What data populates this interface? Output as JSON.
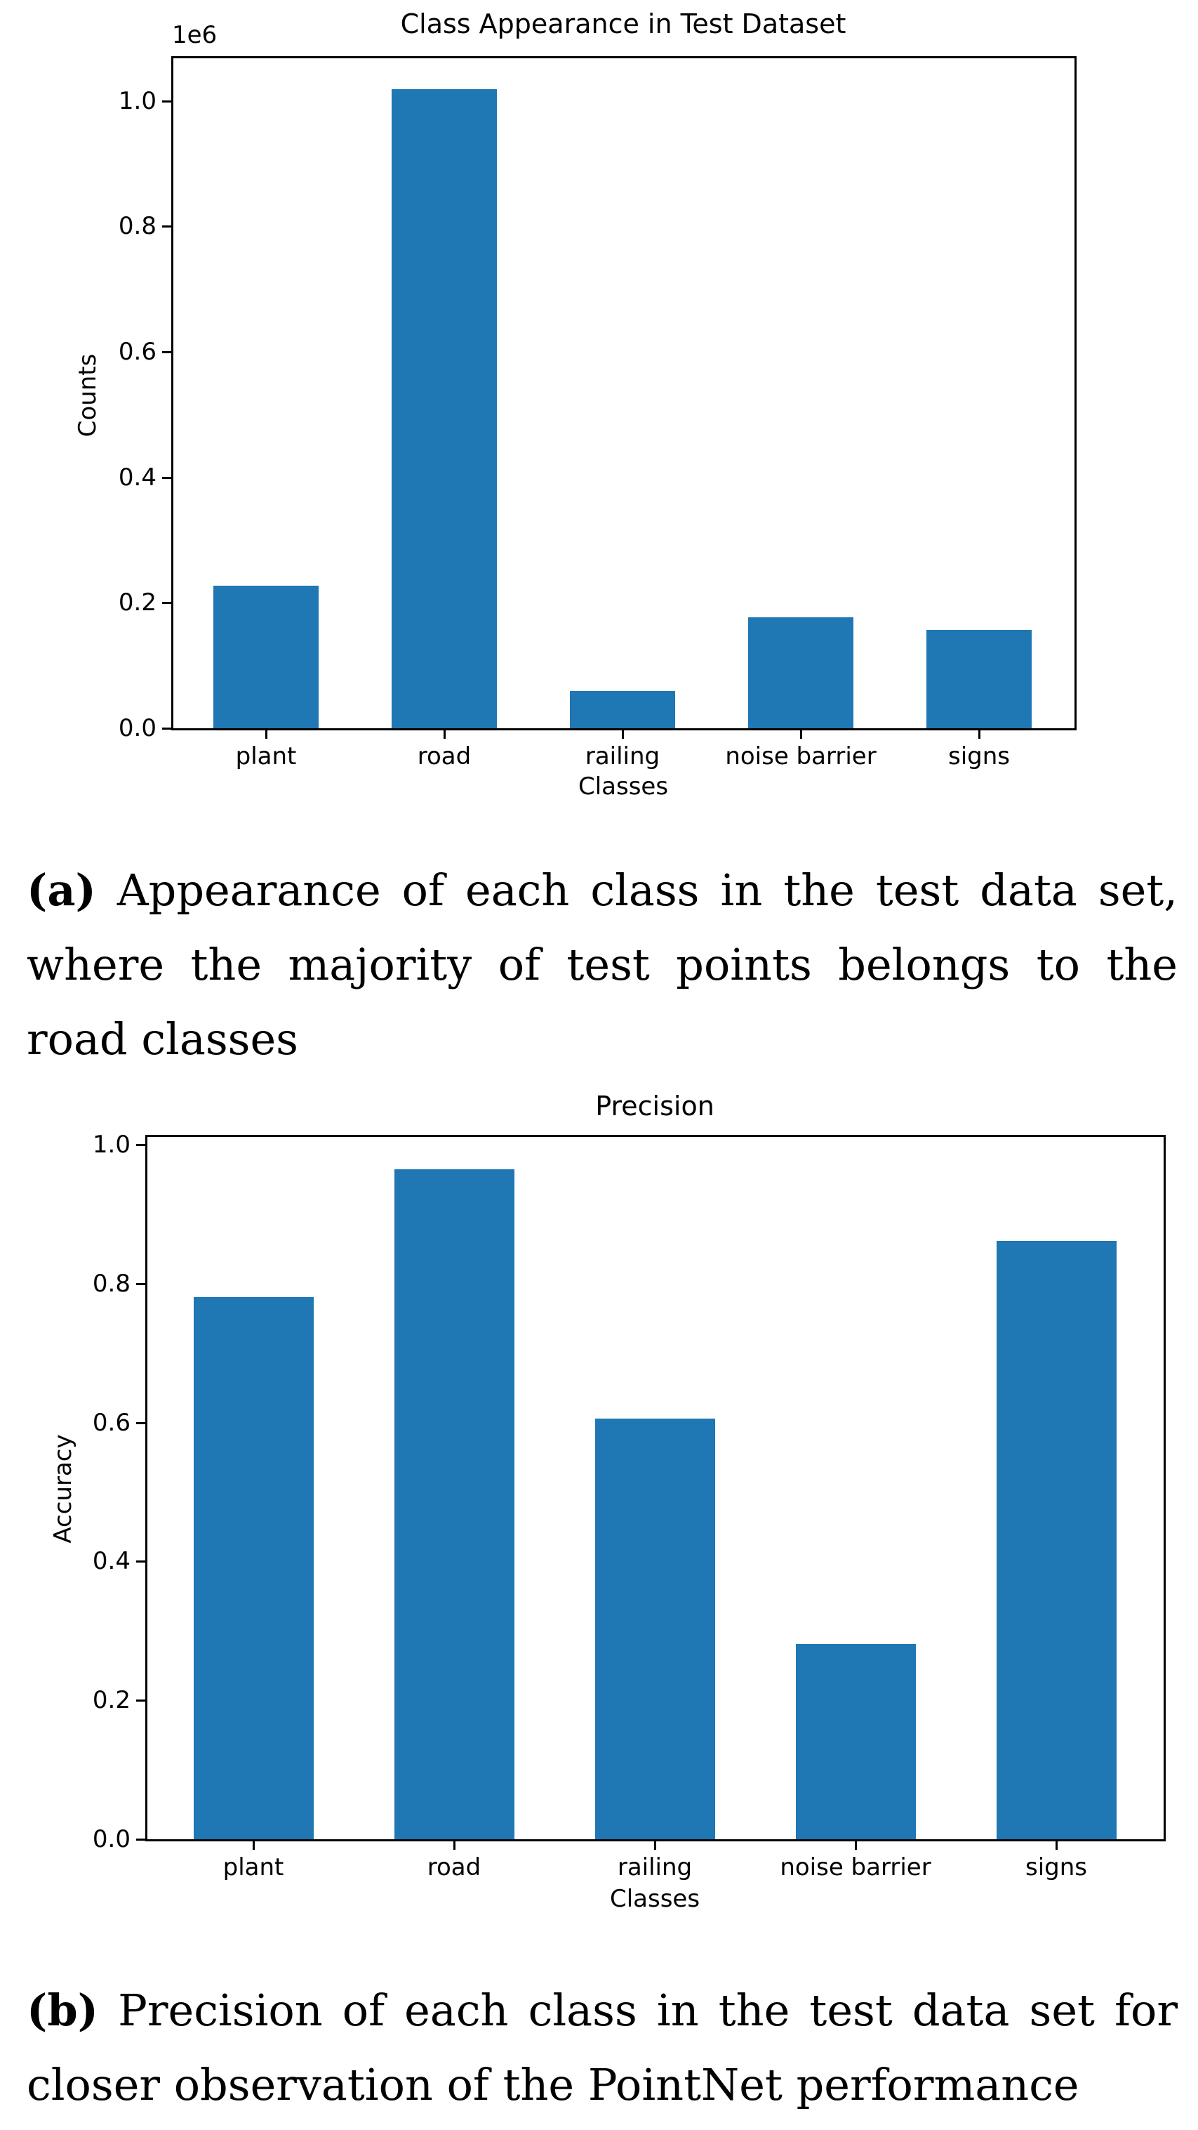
{
  "figure_a": {
    "title": "Class Appearance in Test Dataset",
    "offset_text": "1e6",
    "ylabel": "Counts",
    "xlabel": "Classes",
    "yticks": [
      "0.0",
      "0.2",
      "0.4",
      "0.6",
      "0.8",
      "1.0"
    ],
    "caption_tag": "(a)",
    "caption_text": "Appearance of each class in the test data set, where the majority of test points belongs to the road classes"
  },
  "figure_b": {
    "title": "Precision",
    "ylabel": "Accuracy",
    "xlabel": "Classes",
    "yticks": [
      "0.0",
      "0.2",
      "0.4",
      "0.6",
      "0.8",
      "1.0"
    ],
    "caption_tag": "(b)",
    "caption_text": "Precision of each class in the test data set for closer observation of the PointNet performance"
  },
  "colors": {
    "bar": "#1f77b4",
    "axes": "#000000"
  },
  "chart_data": [
    {
      "type": "bar",
      "title": "Class Appearance in Test Dataset",
      "xlabel": "Classes",
      "ylabel": "Counts",
      "y_scale_offset": "1e6",
      "categories": [
        "plant",
        "road",
        "railing",
        "noise barrier",
        "signs"
      ],
      "values": [
        227000,
        1019000,
        59000,
        177000,
        157000
      ],
      "yticks": [
        0.0,
        0.2,
        0.4,
        0.6,
        0.8,
        1.0
      ],
      "ylim": [
        0,
        1070000
      ],
      "grid": false,
      "legend": null,
      "color": "#1f77b4"
    },
    {
      "type": "bar",
      "title": "Precision",
      "xlabel": "Classes",
      "ylabel": "Accuracy",
      "categories": [
        "plant",
        "road",
        "railing",
        "noise barrier",
        "signs"
      ],
      "values": [
        0.78,
        0.964,
        0.606,
        0.281,
        0.861
      ],
      "yticks": [
        0.0,
        0.2,
        0.4,
        0.6,
        0.8,
        1.0
      ],
      "ylim": [
        0,
        1.013
      ],
      "grid": false,
      "legend": null,
      "color": "#1f77b4"
    }
  ]
}
